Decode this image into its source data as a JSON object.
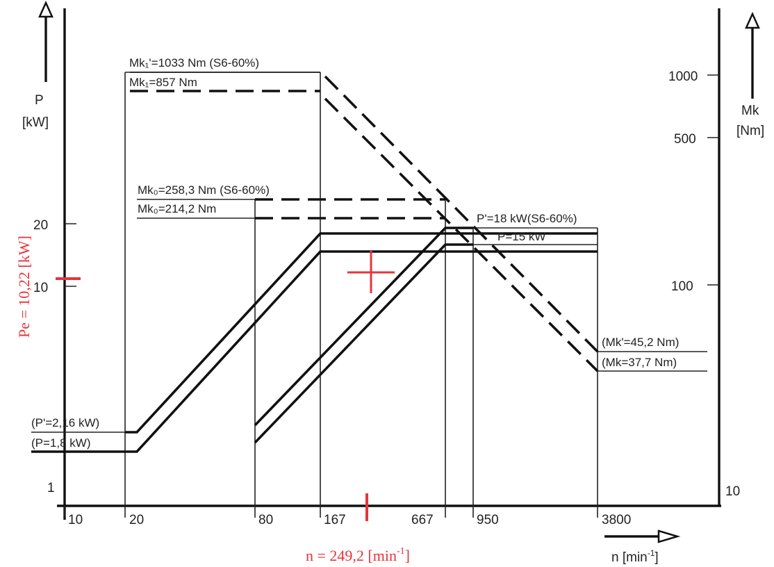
{
  "left_axis": {
    "label": "P",
    "unit": "[kW]",
    "ticks": [
      "20",
      "10",
      "1"
    ]
  },
  "right_axis": {
    "label": "Mk",
    "unit": "[Nm]",
    "ticks": [
      "1000",
      "500",
      "100",
      "10"
    ]
  },
  "x_axis": {
    "label": "n [min",
    "label_sup": "-1",
    "label_end": "]",
    "ticks": [
      "10",
      "20",
      "80",
      "167",
      "667",
      "950",
      "3800"
    ]
  },
  "labels": {
    "mk_high_s6": "Mk₁'=1033 Nm (S6-60%)",
    "mk_high": "Mk₁=857 Nm",
    "mk_mid_s6": "Mk₀=258,3 Nm (S6-60%)",
    "mk_mid": "Mk₀=214,2 Nm",
    "p_top_s6": "P'=18 kW(S6-60%)",
    "p_top": "P=15 kW",
    "mk_low_s6": "(Mk'=45,2 Nm)",
    "mk_low": "(Mk=37,7 Nm)",
    "p_low_s6": "(P'=2,16 kW)",
    "p_low": "(P=1,8 kW)"
  },
  "operating_point": {
    "pe_label": "Pe = 10,22 [kW]",
    "n_label": "n = 249,2 [min",
    "n_sup": "-1",
    "n_end": "]",
    "color": "#e8333a"
  }
}
